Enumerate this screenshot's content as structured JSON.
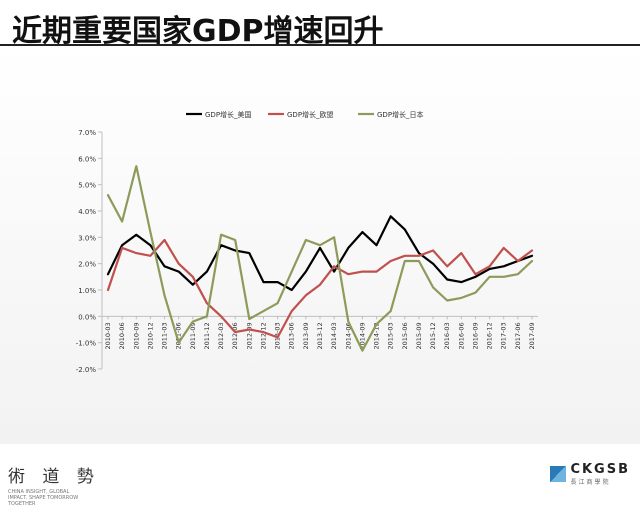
{
  "page": {
    "title": "近期重要国家GDP增速回升"
  },
  "footer": {
    "left_logo_glyphs": "術 道 勢",
    "left_logo_subtitle": "CHINA INSIGHT, GLOBAL IMPACT. SHAPE TOMORROW TOGETHER",
    "right_logo_text": "CKGSB",
    "right_logo_subtitle": "長江商學院"
  },
  "colors": {
    "us": "#000000",
    "eu": "#c0504d",
    "japan": "#8c9b5a",
    "axis": "#bfbfbf"
  },
  "chart_data": {
    "type": "line",
    "title": "",
    "xlabel": "",
    "ylabel": "",
    "legend_position": "top",
    "grid": false,
    "ylim": [
      -2.0,
      7.0
    ],
    "yticks": [
      "7.0%",
      "6.0%",
      "5.0%",
      "4.0%",
      "3.0%",
      "2.0%",
      "1.0%",
      "0.0%",
      "-1.0%",
      "-2.0%"
    ],
    "ytick_values": [
      7,
      6,
      5,
      4,
      3,
      2,
      1,
      0,
      -1,
      -2
    ],
    "x": [
      "2010-03",
      "2010-06",
      "2010-09",
      "2010-12",
      "2011-03",
      "2011-06",
      "2011-09",
      "2011-12",
      "2012-03",
      "2012-06",
      "2012-09",
      "2012-12",
      "2013-03",
      "2013-06",
      "2013-09",
      "2013-12",
      "2014-03",
      "2014-06",
      "2014-09",
      "2014-12",
      "2015-03",
      "2015-06",
      "2015-09",
      "2015-12",
      "2016-03",
      "2016-06",
      "2016-09",
      "2016-12",
      "2017-03",
      "2017-06",
      "2017-09"
    ],
    "xtick_labels": [
      "2010-03",
      "2010-06",
      "2010-09",
      "2010-12",
      "2011-03",
      "2011-06",
      "2011-09",
      "2011-12",
      "2012-03",
      "2012-06",
      "2012-09",
      "2012-12",
      "2013-03",
      "2013-06",
      "2013-09",
      "2013-12",
      "2014-03",
      "2014-06",
      "2014-09",
      "2014-12",
      "2015-03",
      "2015-06",
      "2015-09",
      "2015-12",
      "2016-03",
      "2016-06",
      "2016-09",
      "2016-12",
      "2017-03",
      "2017-06",
      "2017-09"
    ],
    "series": [
      {
        "name": "GDP增长_美国",
        "color": "#000000",
        "values": [
          1.6,
          2.7,
          3.1,
          2.7,
          1.9,
          1.7,
          1.2,
          1.7,
          2.7,
          2.5,
          2.4,
          1.3,
          1.3,
          1.0,
          1.7,
          2.6,
          1.7,
          2.6,
          3.2,
          2.7,
          3.8,
          3.3,
          2.4,
          2.0,
          1.4,
          1.3,
          1.5,
          1.8,
          1.9,
          2.1,
          2.3
        ]
      },
      {
        "name": "GDP增长_欧盟",
        "color": "#c0504d",
        "values": [
          1.0,
          2.6,
          2.4,
          2.3,
          2.9,
          2.0,
          1.5,
          0.5,
          0.0,
          -0.6,
          -0.5,
          -0.6,
          -0.8,
          0.2,
          0.8,
          1.2,
          1.9,
          1.6,
          1.7,
          1.7,
          2.1,
          2.3,
          2.3,
          2.5,
          1.9,
          2.4,
          1.6,
          1.9,
          2.6,
          2.1,
          2.5
        ]
      },
      {
        "name": "GDP增长_日本",
        "color": "#8c9b5a",
        "values": [
          4.6,
          3.6,
          5.7,
          3.2,
          0.8,
          -1.0,
          -0.2,
          0.0,
          3.1,
          2.9,
          -0.1,
          0.2,
          0.5,
          1.7,
          2.9,
          2.7,
          3.0,
          -0.2,
          -1.3,
          -0.3,
          0.2,
          2.1,
          2.1,
          1.1,
          0.6,
          0.7,
          0.9,
          1.5,
          1.5,
          1.6,
          2.1
        ]
      }
    ]
  }
}
